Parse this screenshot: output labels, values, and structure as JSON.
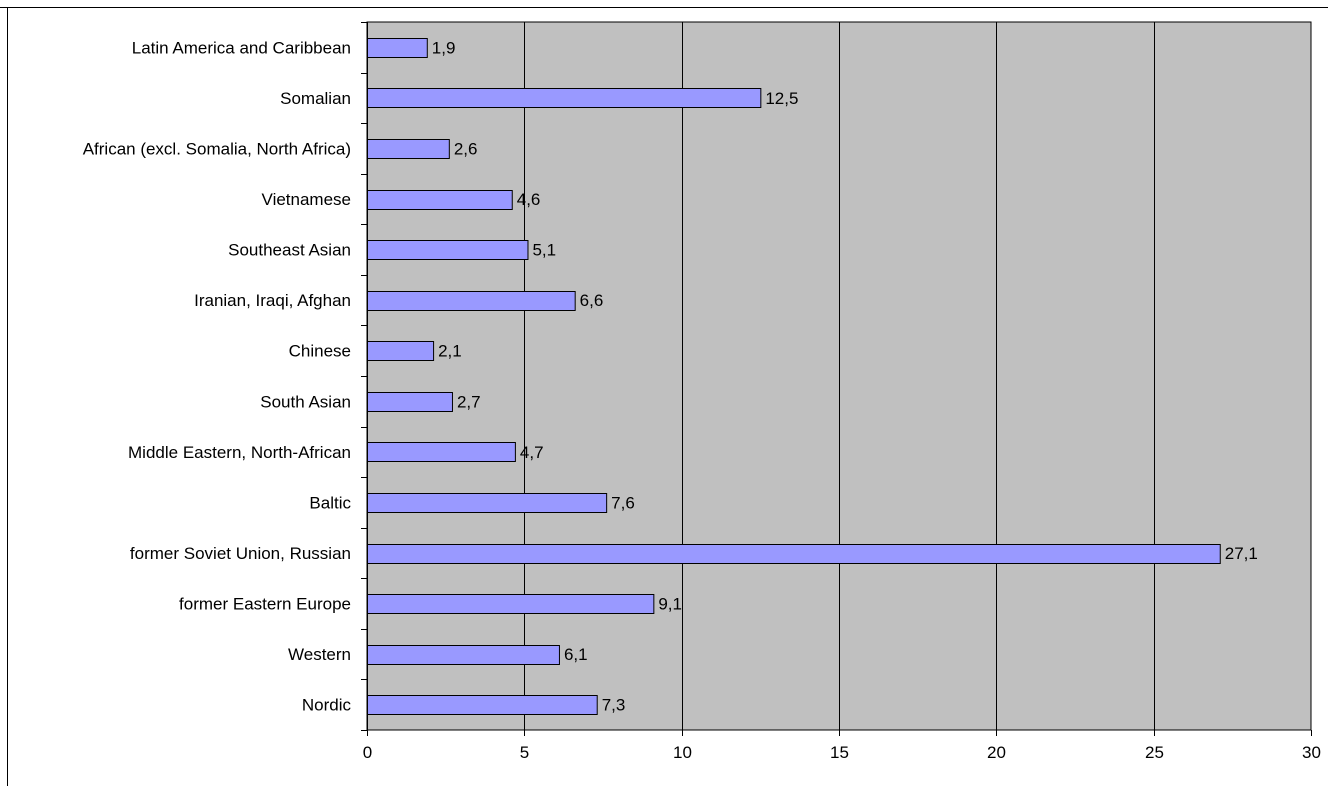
{
  "chart_data": {
    "type": "bar",
    "orientation": "horizontal",
    "categories": [
      "Latin America and Caribbean",
      "Somalian",
      "African (excl. Somalia, North Africa)",
      "Vietnamese",
      "Southeast Asian",
      "Iranian, Iraqi, Afghan",
      "Chinese",
      "South Asian",
      "Middle Eastern, North-African",
      "Baltic",
      "former Soviet Union, Russian",
      "former Eastern Europe",
      "Western",
      "Nordic"
    ],
    "values": [
      1.9,
      12.5,
      2.6,
      4.6,
      5.1,
      6.6,
      2.1,
      2.7,
      4.7,
      7.6,
      27.1,
      9.1,
      6.1,
      7.3
    ],
    "value_labels": [
      "1,9",
      "12,5",
      "2,6",
      "4,6",
      "5,1",
      "6,6",
      "2,1",
      "2,7",
      "4,7",
      "7,6",
      "27,1",
      "9,1",
      "6,1",
      "7,3"
    ],
    "xticks": [
      0,
      5,
      10,
      15,
      20,
      25,
      30
    ],
    "xlim": [
      0,
      30
    ],
    "title": "",
    "xlabel": "",
    "ylabel": "",
    "grid": "vertical",
    "legend": "none",
    "colors": {
      "bar_fill": "#9999ff",
      "bar_stroke": "#000000",
      "plot_background": "#c0c0c0",
      "gridline": "#000000"
    }
  }
}
